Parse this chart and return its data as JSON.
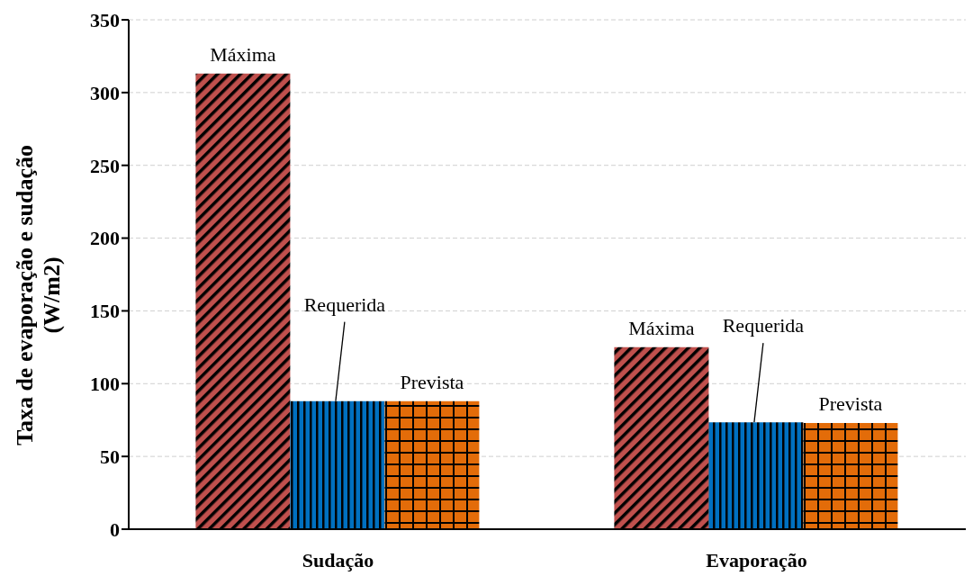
{
  "chart_data": {
    "type": "bar",
    "ylabel": "Taxa de evaporação e sudação\n(W/m2)",
    "categories": [
      "Sudação",
      "Evaporação"
    ],
    "series": [
      {
        "name": "Máxima",
        "color": "#c0504d",
        "values": [
          313,
          125
        ]
      },
      {
        "name": "Requerida",
        "color": "#0070c0",
        "values": [
          88,
          73.5
        ]
      },
      {
        "name": "Prevista",
        "color": "#e36c09",
        "values": [
          88,
          73
        ]
      }
    ],
    "ylim": [
      0,
      350
    ],
    "yticks": [
      0,
      50,
      100,
      150,
      200,
      250,
      300,
      350
    ],
    "grid": "y",
    "legend": false
  }
}
